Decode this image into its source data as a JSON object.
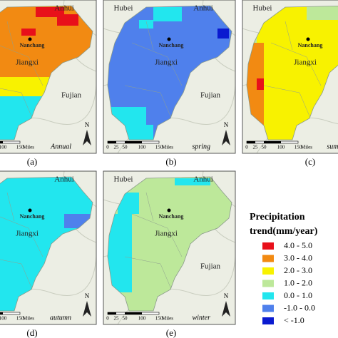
{
  "panels": [
    {
      "label": "(a)",
      "season": "Annual",
      "places": {
        "anhui": "Anhui",
        "nanchang": "Nanchang",
        "jiangxi": "Jiangxi",
        "fujian": "Fujian"
      },
      "scale": [
        "0",
        "25",
        "50",
        "100",
        "150"
      ],
      "scale_unit": "Miles",
      "north": "N"
    },
    {
      "label": "(b)",
      "season": "spring",
      "places": {
        "hubei": "Hubei",
        "anhui": "Anhui",
        "nanchang": "Nanchang",
        "jiangxi": "Jiangxi",
        "fujian": "Fujian"
      },
      "scale": [
        "0",
        "25",
        "50",
        "100",
        "150"
      ],
      "scale_unit": "Miles",
      "north": "N"
    },
    {
      "label": "(c)",
      "season": "summer",
      "places": {
        "hubei": "Hubei",
        "nanchang": "Nanchang",
        "jiangxi": "Jiangxi"
      },
      "scale": [
        "0",
        "25",
        "50",
        "100",
        "150"
      ],
      "scale_unit": "Miles",
      "north": "N"
    },
    {
      "label": "(d)",
      "season": "autumn",
      "places": {
        "anhui": "Anhui",
        "nanchang": "Nanchang",
        "jiangxi": "Jiangxi"
      },
      "scale": [
        "0",
        "25",
        "50",
        "100",
        "150"
      ],
      "scale_unit": "Miles",
      "north": "N"
    },
    {
      "label": "(e)",
      "season": "winter",
      "places": {
        "hubei": "Hubei",
        "anhui": "Anhui",
        "nanchang": "Nanchang",
        "jiangxi": "Jiangxi",
        "fujian": "Fujian"
      },
      "scale": [
        "0",
        "25",
        "50",
        "100",
        "150"
      ],
      "scale_unit": "Miles",
      "north": "N"
    }
  ],
  "legend": {
    "title_lines": [
      "Precipitation",
      "trend(mm/year)"
    ],
    "items": [
      {
        "label": "4.0 - 5.0",
        "color": "#e8101a"
      },
      {
        "label": "3.0 - 4.0",
        "color": "#f28a12"
      },
      {
        "label": "2.0 - 3.0",
        "color": "#f8f200"
      },
      {
        "label": "1.0 - 2.0",
        "color": "#bde89a"
      },
      {
        "label": "0.0 - 1.0",
        "color": "#22e6ee"
      },
      {
        "label": "-1.0 - 0.0",
        "color": "#4f80ec"
      },
      {
        "label": "< -1.0",
        "color": "#0a1ad0"
      }
    ]
  }
}
